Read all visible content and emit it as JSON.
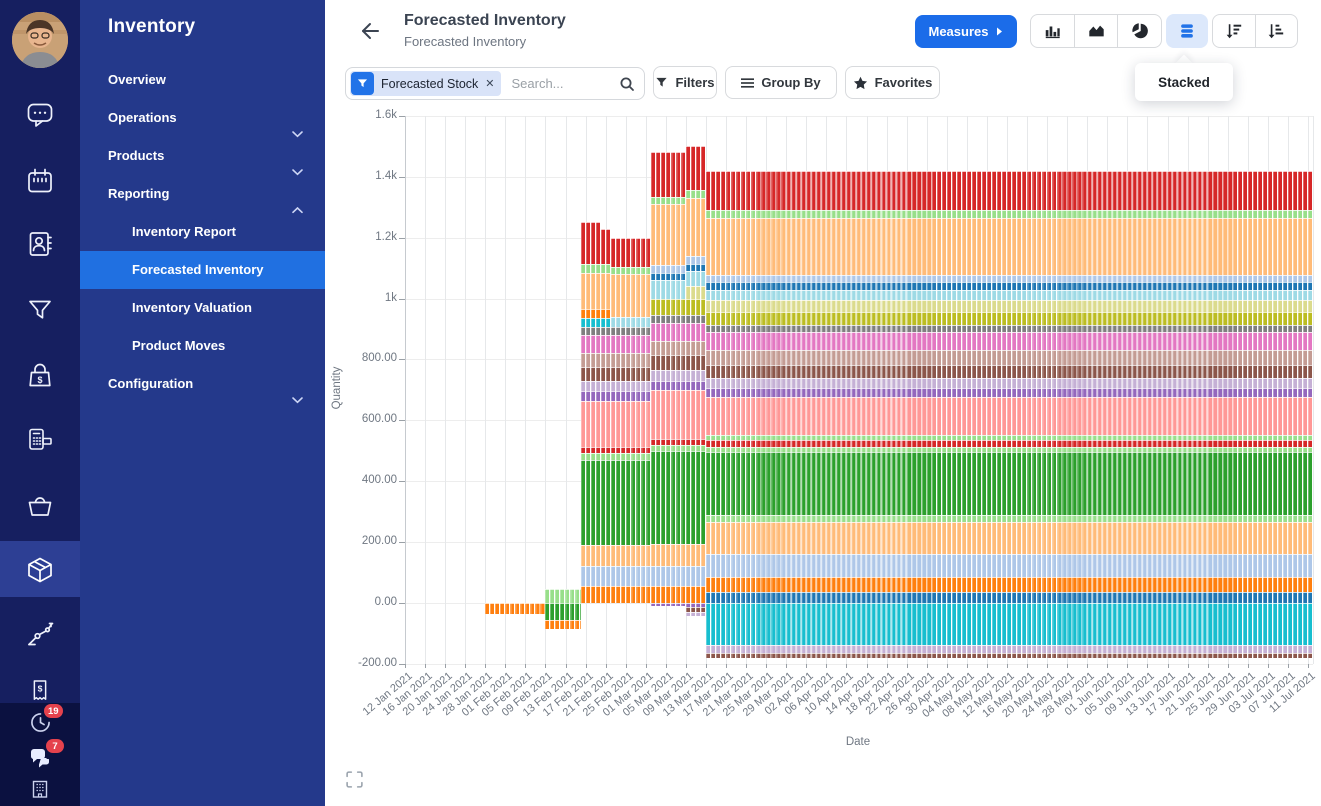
{
  "app": {
    "name": "Inventory"
  },
  "rail": {
    "activity_badge": "19",
    "message_badge": "7"
  },
  "sidebar": {
    "title": "Inventory",
    "items": [
      {
        "label": "Overview"
      },
      {
        "label": "Operations"
      },
      {
        "label": "Products"
      },
      {
        "label": "Reporting",
        "children": [
          "Inventory Report",
          "Forecasted Inventory",
          "Inventory Valuation",
          "Product Moves"
        ],
        "active_child": "Forecasted Inventory"
      },
      {
        "label": "Configuration"
      }
    ]
  },
  "header": {
    "title": "Forecasted Inventory",
    "subtitle": "Forecasted Inventory",
    "measures_label": "Measures"
  },
  "controls": {
    "facet_label": "Forecasted Stock",
    "search_placeholder": "Search...",
    "filters_label": "Filters",
    "group_by_label": "Group By",
    "favorites_label": "Favorites"
  },
  "tooltip": {
    "label": "Stacked"
  },
  "colors": {
    "accent_blue": "#1b6ce9",
    "active_menu_blue": "#2070e1",
    "sidebar_bg": "#24398b",
    "rail_bg": "#161f60",
    "rail_tray_bg": "#0b1140",
    "badge_red": "#e5424d",
    "stacked_button_bg": "#dce8fb"
  },
  "chart_data": {
    "type": "bar",
    "stacked": true,
    "legend": "hidden",
    "title": "",
    "xlabel": "Date",
    "ylabel": "Quantity",
    "ylim": [
      -200,
      1600
    ],
    "y_ticks": [
      "1.6k",
      "1.4k",
      "1.2k",
      "1k",
      "800.00",
      "600.00",
      "400.00",
      "200.00",
      "0.00",
      "-200.00"
    ],
    "y_tick_values": [
      1600,
      1400,
      1200,
      1000,
      800,
      600,
      400,
      200,
      0,
      -200
    ],
    "x_tick_labels": [
      "12 Jan 2021",
      "16 Jan 2021",
      "20 Jan 2021",
      "24 Jan 2021",
      "28 Jan 2021",
      "01 Feb 2021",
      "05 Feb 2021",
      "09 Feb 2021",
      "13 Feb 2021",
      "17 Feb 2021",
      "21 Feb 2021",
      "25 Feb 2021",
      "01 Mar 2021",
      "05 Mar 2021",
      "09 Mar 2021",
      "13 Mar 2021",
      "17 Mar 2021",
      "21 Mar 2021",
      "25 Mar 2021",
      "29 Mar 2021",
      "02 Apr 2021",
      "06 Apr 2021",
      "10 Apr 2021",
      "14 Apr 2021",
      "18 Apr 2021",
      "22 Apr 2021",
      "26 Apr 2021",
      "30 Apr 2021",
      "04 May 2021",
      "08 May 2021",
      "12 May 2021",
      "16 May 2021",
      "20 May 2021",
      "24 May 2021",
      "28 May 2021",
      "01 Jun 2021",
      "05 Jun 2021",
      "09 Jun 2021",
      "13 Jun 2021",
      "17 Jun 2021",
      "21 Jun 2021",
      "25 Jun 2021",
      "29 Jun 2021",
      "03 Jul 2021",
      "07 Jul 2021",
      "11 Jul 2021"
    ],
    "x_tick_every_days": 4,
    "start_date": "12 Jan 2021",
    "end_date": "11 Jul 2021",
    "days_total": 181,
    "palette": {
      "blue": "#1f77b4",
      "lightblue": "#aec7e8",
      "orange": "#ff7f0e",
      "peach": "#ffbb78",
      "green": "#2ca02c",
      "lightgreen": "#98df8a",
      "red": "#d62728",
      "salmon": "#ff9896",
      "purple": "#9467bd",
      "lavender": "#c5b0d5",
      "brown": "#8c564b",
      "rosybrown": "#c49c94",
      "orchid": "#e377c2",
      "pink": "#f7b6d2",
      "gray": "#7f7f7f",
      "lightgray": "#c7c7c7",
      "olive": "#bcbd22",
      "khaki": "#dbdb8d",
      "teal": "#17becf",
      "lightteal": "#9edae5"
    },
    "periods": [
      {
        "from_day": 0,
        "to_day": 16,
        "segments": []
      },
      {
        "from_day": 16,
        "to_day": 28,
        "segments": [
          [
            "orange",
            -36,
            0
          ]
        ]
      },
      {
        "from_day": 28,
        "to_day": 35,
        "segments": [
          [
            "green",
            -55,
            0
          ],
          [
            "orange",
            -85,
            -55
          ],
          [
            "lightgreen",
            0,
            45
          ]
        ]
      },
      {
        "from_day": 35,
        "to_day": 39,
        "segments": [
          [
            "orange",
            0,
            55
          ],
          [
            "lightblue",
            55,
            120
          ],
          [
            "peach",
            120,
            190
          ],
          [
            "green",
            190,
            470
          ],
          [
            "lightgreen",
            470,
            492
          ],
          [
            "red",
            492,
            512
          ],
          [
            "salmon",
            512,
            665
          ],
          [
            "purple",
            665,
            695
          ],
          [
            "lavender",
            695,
            728
          ],
          [
            "brown",
            728,
            775
          ],
          [
            "rosybrown",
            775,
            820
          ],
          [
            "orchid",
            820,
            880
          ],
          [
            "gray",
            880,
            905
          ],
          [
            "teal",
            905,
            935
          ],
          [
            "orange",
            935,
            965
          ],
          [
            "peach",
            965,
            1085
          ],
          [
            "lightgreen",
            1085,
            1115
          ],
          [
            "red",
            1115,
            1250
          ]
        ]
      },
      {
        "from_day": 39,
        "to_day": 41,
        "segments": [
          [
            "orange",
            0,
            55
          ],
          [
            "lightblue",
            55,
            120
          ],
          [
            "peach",
            120,
            190
          ],
          [
            "green",
            190,
            470
          ],
          [
            "lightgreen",
            470,
            492
          ],
          [
            "red",
            492,
            512
          ],
          [
            "salmon",
            512,
            665
          ],
          [
            "purple",
            665,
            695
          ],
          [
            "lavender",
            695,
            728
          ],
          [
            "brown",
            728,
            775
          ],
          [
            "rosybrown",
            775,
            820
          ],
          [
            "orchid",
            820,
            880
          ],
          [
            "gray",
            880,
            905
          ],
          [
            "teal",
            905,
            935
          ],
          [
            "orange",
            935,
            965
          ],
          [
            "peach",
            965,
            1085
          ],
          [
            "lightgreen",
            1085,
            1112
          ],
          [
            "red",
            1112,
            1228
          ]
        ]
      },
      {
        "from_day": 41,
        "to_day": 49,
        "segments": [
          [
            "orange",
            0,
            55
          ],
          [
            "lightblue",
            55,
            120
          ],
          [
            "peach",
            120,
            190
          ],
          [
            "green",
            190,
            470
          ],
          [
            "lightgreen",
            470,
            492
          ],
          [
            "red",
            492,
            512
          ],
          [
            "salmon",
            512,
            665
          ],
          [
            "purple",
            665,
            695
          ],
          [
            "lavender",
            695,
            728
          ],
          [
            "brown",
            728,
            775
          ],
          [
            "rosybrown",
            775,
            820
          ],
          [
            "orchid",
            820,
            880
          ],
          [
            "gray",
            880,
            905
          ],
          [
            "lightteal",
            905,
            940
          ],
          [
            "peach",
            940,
            1080
          ],
          [
            "lightgreen",
            1080,
            1105
          ],
          [
            "red",
            1105,
            1200
          ]
        ]
      },
      {
        "from_day": 49,
        "to_day": 56,
        "segments": [
          [
            "purple",
            -10,
            0
          ],
          [
            "orange",
            0,
            55
          ],
          [
            "lightblue",
            55,
            120
          ],
          [
            "peach",
            120,
            195
          ],
          [
            "green",
            195,
            500
          ],
          [
            "lightgreen",
            500,
            520
          ],
          [
            "red",
            520,
            540
          ],
          [
            "salmon",
            540,
            700
          ],
          [
            "purple",
            700,
            730
          ],
          [
            "lavender",
            730,
            765
          ],
          [
            "brown",
            765,
            815
          ],
          [
            "rosybrown",
            815,
            860
          ],
          [
            "orchid",
            860,
            920
          ],
          [
            "gray",
            920,
            945
          ],
          [
            "olive",
            945,
            1000
          ],
          [
            "lightteal",
            1000,
            1060
          ],
          [
            "blue",
            1060,
            1085
          ],
          [
            "lightblue",
            1085,
            1110
          ],
          [
            "peach",
            1110,
            1310
          ],
          [
            "lightgreen",
            1310,
            1335
          ],
          [
            "red",
            1335,
            1480
          ]
        ]
      },
      {
        "from_day": 56,
        "to_day": 60,
        "segments": [
          [
            "lavender",
            -43,
            -28
          ],
          [
            "brown",
            -28,
            -12
          ],
          [
            "purple",
            -12,
            0
          ],
          [
            "orange",
            0,
            55
          ],
          [
            "lightblue",
            55,
            120
          ],
          [
            "peach",
            120,
            195
          ],
          [
            "green",
            195,
            500
          ],
          [
            "lightgreen",
            500,
            520
          ],
          [
            "red",
            520,
            540
          ],
          [
            "salmon",
            540,
            700
          ],
          [
            "purple",
            700,
            730
          ],
          [
            "lavender",
            730,
            765
          ],
          [
            "brown",
            765,
            815
          ],
          [
            "rosybrown",
            815,
            860
          ],
          [
            "orchid",
            860,
            920
          ],
          [
            "gray",
            920,
            945
          ],
          [
            "olive",
            945,
            1000
          ],
          [
            "khaki",
            1000,
            1040
          ],
          [
            "lightteal",
            1040,
            1090
          ],
          [
            "blue",
            1090,
            1115
          ],
          [
            "lightblue",
            1115,
            1140
          ],
          [
            "peach",
            1140,
            1330
          ],
          [
            "lightgreen",
            1330,
            1355
          ],
          [
            "red",
            1355,
            1500
          ]
        ]
      },
      {
        "from_day": 60,
        "to_day": 181,
        "segments": [
          [
            "brown",
            -181,
            -164
          ],
          [
            "lavender",
            -164,
            -138
          ],
          [
            "teal",
            -138,
            0
          ],
          [
            "blue",
            0,
            35
          ],
          [
            "orange",
            35,
            85
          ],
          [
            "lightblue",
            85,
            160
          ],
          [
            "peach",
            160,
            265
          ],
          [
            "lightgreen",
            265,
            290
          ],
          [
            "green",
            290,
            495
          ],
          [
            "lightgreen",
            495,
            513
          ],
          [
            "red",
            513,
            535
          ],
          [
            "lightgreen",
            535,
            552
          ],
          [
            "salmon",
            552,
            677
          ],
          [
            "purple",
            677,
            706
          ],
          [
            "lavender",
            706,
            739
          ],
          [
            "brown",
            739,
            782
          ],
          [
            "rosybrown",
            782,
            831
          ],
          [
            "orchid",
            831,
            890
          ],
          [
            "gray",
            890,
            913
          ],
          [
            "olive",
            913,
            956
          ],
          [
            "khaki",
            956,
            995
          ],
          [
            "lightteal",
            995,
            1028
          ],
          [
            "blue",
            1028,
            1054
          ],
          [
            "lightblue",
            1054,
            1077
          ],
          [
            "peach",
            1077,
            1265
          ],
          [
            "lightgreen",
            1265,
            1291
          ],
          [
            "red",
            1291,
            1418
          ]
        ]
      }
    ]
  }
}
